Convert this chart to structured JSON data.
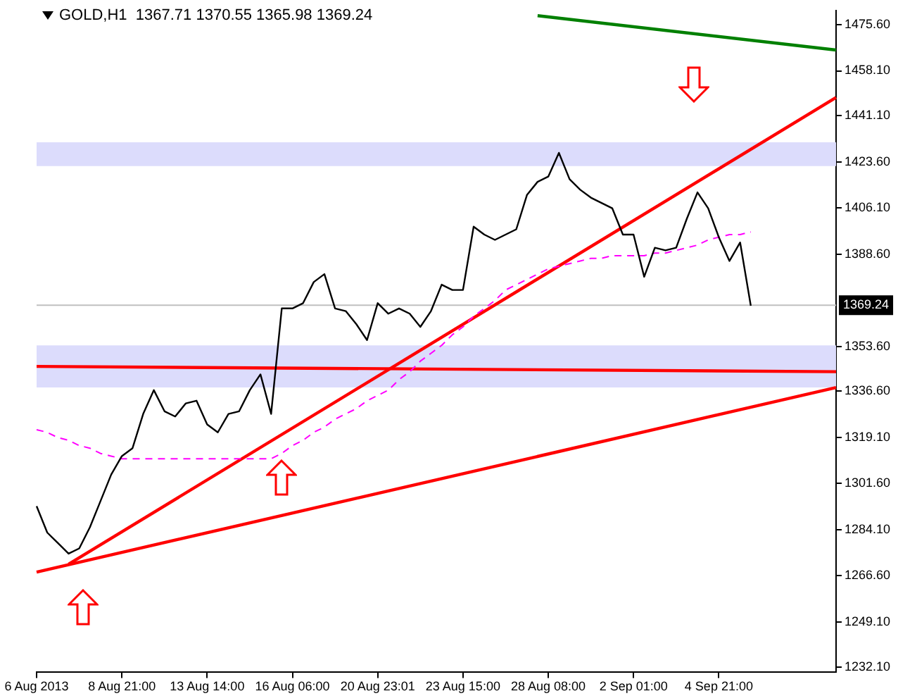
{
  "chart_data": {
    "type": "line",
    "title": "GOLD,H1  1367.71 1370.55 1365.98 1369.24",
    "categories": [
      "6 Aug 2013",
      null,
      null,
      null,
      null,
      null,
      null,
      null,
      "8 Aug 21:00",
      null,
      null,
      null,
      null,
      null,
      null,
      null,
      "13 Aug 14:00",
      null,
      null,
      null,
      null,
      null,
      null,
      null,
      "16 Aug 06:00",
      null,
      null,
      null,
      null,
      null,
      null,
      null,
      "20 Aug 23:01",
      null,
      null,
      null,
      null,
      null,
      null,
      null,
      "23 Aug 15:00",
      null,
      null,
      null,
      null,
      null,
      null,
      null,
      "28 Aug 08:00",
      null,
      null,
      null,
      null,
      null,
      null,
      null,
      "2 Sep 01:00",
      null,
      null,
      null,
      null,
      null,
      null,
      null,
      "4 Sep 21:00",
      null,
      null,
      null,
      null,
      null,
      null,
      null,
      null,
      null,
      null,
      null
    ],
    "ylim": [
      1230,
      1481
    ],
    "yticks": [
      {
        "value": 1475.6,
        "label": "1475.60"
      },
      {
        "value": 1458.1,
        "label": "1458.10"
      },
      {
        "value": 1441.1,
        "label": "1441.10"
      },
      {
        "value": 1423.6,
        "label": "1423.60"
      },
      {
        "value": 1406.1,
        "label": "1406.10"
      },
      {
        "value": 1388.6,
        "label": "1388.60"
      },
      {
        "value": 1353.6,
        "label": "1353.60"
      },
      {
        "value": 1336.6,
        "label": "1336.60"
      },
      {
        "value": 1319.1,
        "label": "1319.10"
      },
      {
        "value": 1301.6,
        "label": "1301.60"
      },
      {
        "value": 1284.1,
        "label": "1284.10"
      },
      {
        "value": 1266.6,
        "label": "1266.60"
      },
      {
        "value": 1249.1,
        "label": "1249.10"
      },
      {
        "value": 1232.1,
        "label": "1232.10"
      }
    ],
    "grid": false,
    "legend": false,
    "marker": "none",
    "series": [
      {
        "color": "#000000",
        "values": [
          1293,
          1283,
          1279,
          1275,
          1277,
          1285,
          1295,
          1305,
          1312,
          1315,
          1328,
          1337,
          1329,
          1327,
          1332,
          1333,
          1324,
          1321,
          1328,
          1329,
          1337,
          1343,
          1328,
          1368,
          1368,
          1370,
          1378,
          1381,
          1368,
          1367,
          1362,
          1356,
          1370,
          1366,
          1368,
          1366,
          1361,
          1367,
          1377,
          1375,
          1375,
          1399,
          1396,
          1394,
          1396,
          1398,
          1411,
          1416,
          1418,
          1427,
          1417,
          1413,
          1410,
          1408,
          1406,
          1396,
          1396,
          1380,
          1391,
          1390,
          1391,
          1402,
          1412,
          1406,
          1395,
          1386,
          1393,
          1369,
          null,
          null,
          null,
          null,
          null,
          null,
          null,
          null
        ]
      },
      {
        "color": "#ff00ff",
        "line_style": "dashed",
        "values": [
          1322,
          1321,
          1319,
          1318,
          1316,
          1315,
          1313,
          1312,
          1311,
          1311,
          1311,
          1311,
          1311,
          1311,
          1311,
          1311,
          1311,
          1311,
          1311,
          1311,
          1311,
          1311,
          1311,
          1313,
          1316,
          1318,
          1321,
          1323,
          1326,
          1328,
          1330,
          1333,
          1335,
          1337,
          1341,
          1344,
          1348,
          1351,
          1354,
          1358,
          1361,
          1365,
          1368,
          1371,
          1375,
          1377,
          1379,
          1381,
          1383,
          1384,
          1385,
          1386,
          1387,
          1387,
          1388,
          1388,
          1388,
          1388,
          1389,
          1389,
          1390,
          1391,
          1392,
          1394,
          1395,
          1396,
          1396,
          1397,
          null,
          null,
          null,
          null,
          null,
          null,
          null,
          null
        ]
      },
      {
        "color": "#ff0000",
        "values": [
          null,
          null,
          null,
          1271,
          null,
          null,
          null,
          null,
          null,
          null,
          null,
          null,
          null,
          null,
          null,
          null,
          null,
          null,
          null,
          null,
          null,
          null,
          null,
          null,
          null,
          null,
          null,
          null,
          null,
          null,
          null,
          null,
          null,
          null,
          null,
          null,
          null,
          null,
          null,
          null,
          null,
          null,
          null,
          null,
          null,
          null,
          null,
          null,
          null,
          null,
          null,
          null,
          null,
          null,
          null,
          null,
          null,
          null,
          null,
          null,
          null,
          null,
          null,
          null,
          null,
          null,
          null,
          null,
          null,
          null,
          null,
          null,
          null,
          null,
          null,
          1448
        ]
      },
      {
        "color": "#ff0000",
        "values": [
          1268,
          null,
          null,
          null,
          null,
          null,
          null,
          null,
          null,
          null,
          null,
          null,
          null,
          null,
          null,
          null,
          null,
          null,
          null,
          null,
          null,
          null,
          null,
          null,
          null,
          null,
          null,
          null,
          null,
          null,
          null,
          null,
          null,
          null,
          null,
          null,
          null,
          null,
          null,
          null,
          null,
          null,
          null,
          null,
          null,
          null,
          null,
          null,
          null,
          null,
          null,
          null,
          null,
          null,
          null,
          null,
          null,
          null,
          null,
          null,
          null,
          null,
          null,
          null,
          null,
          null,
          null,
          null,
          null,
          null,
          null,
          null,
          null,
          null,
          null,
          1338
        ]
      },
      {
        "color": "#ff0000",
        "values": [
          1346,
          null,
          null,
          null,
          null,
          null,
          null,
          null,
          null,
          null,
          null,
          null,
          null,
          null,
          null,
          null,
          null,
          null,
          null,
          null,
          null,
          null,
          null,
          null,
          null,
          null,
          null,
          null,
          null,
          null,
          null,
          null,
          null,
          null,
          null,
          null,
          null,
          null,
          null,
          null,
          null,
          null,
          null,
          null,
          null,
          null,
          null,
          null,
          null,
          null,
          null,
          null,
          null,
          null,
          null,
          null,
          null,
          null,
          null,
          null,
          null,
          null,
          null,
          null,
          null,
          null,
          null,
          null,
          null,
          null,
          null,
          null,
          null,
          null,
          null,
          1344
        ]
      },
      {
        "color": "#008000",
        "values": [
          null,
          null,
          null,
          null,
          null,
          null,
          null,
          null,
          null,
          null,
          null,
          null,
          null,
          null,
          null,
          null,
          null,
          null,
          null,
          null,
          null,
          null,
          null,
          null,
          null,
          null,
          null,
          null,
          null,
          null,
          null,
          null,
          null,
          null,
          null,
          null,
          null,
          null,
          null,
          null,
          null,
          null,
          null,
          null,
          null,
          null,
          null,
          1479,
          null,
          null,
          null,
          null,
          null,
          null,
          null,
          null,
          null,
          null,
          null,
          null,
          null,
          null,
          null,
          null,
          null,
          null,
          null,
          null,
          null,
          null,
          null,
          null,
          null,
          null,
          null,
          1466
        ]
      }
    ],
    "bands": [
      {
        "axis": "y",
        "from": 1422,
        "to": 1431,
        "color": "#dcdcfc"
      },
      {
        "axis": "y",
        "from": 1338,
        "to": 1354,
        "color": "#dcdcfc"
      }
    ],
    "ref_lines": [
      {
        "axis": "y",
        "value": 1369.24,
        "label": "1369.24",
        "color": "#c0c0c0"
      }
    ]
  }
}
